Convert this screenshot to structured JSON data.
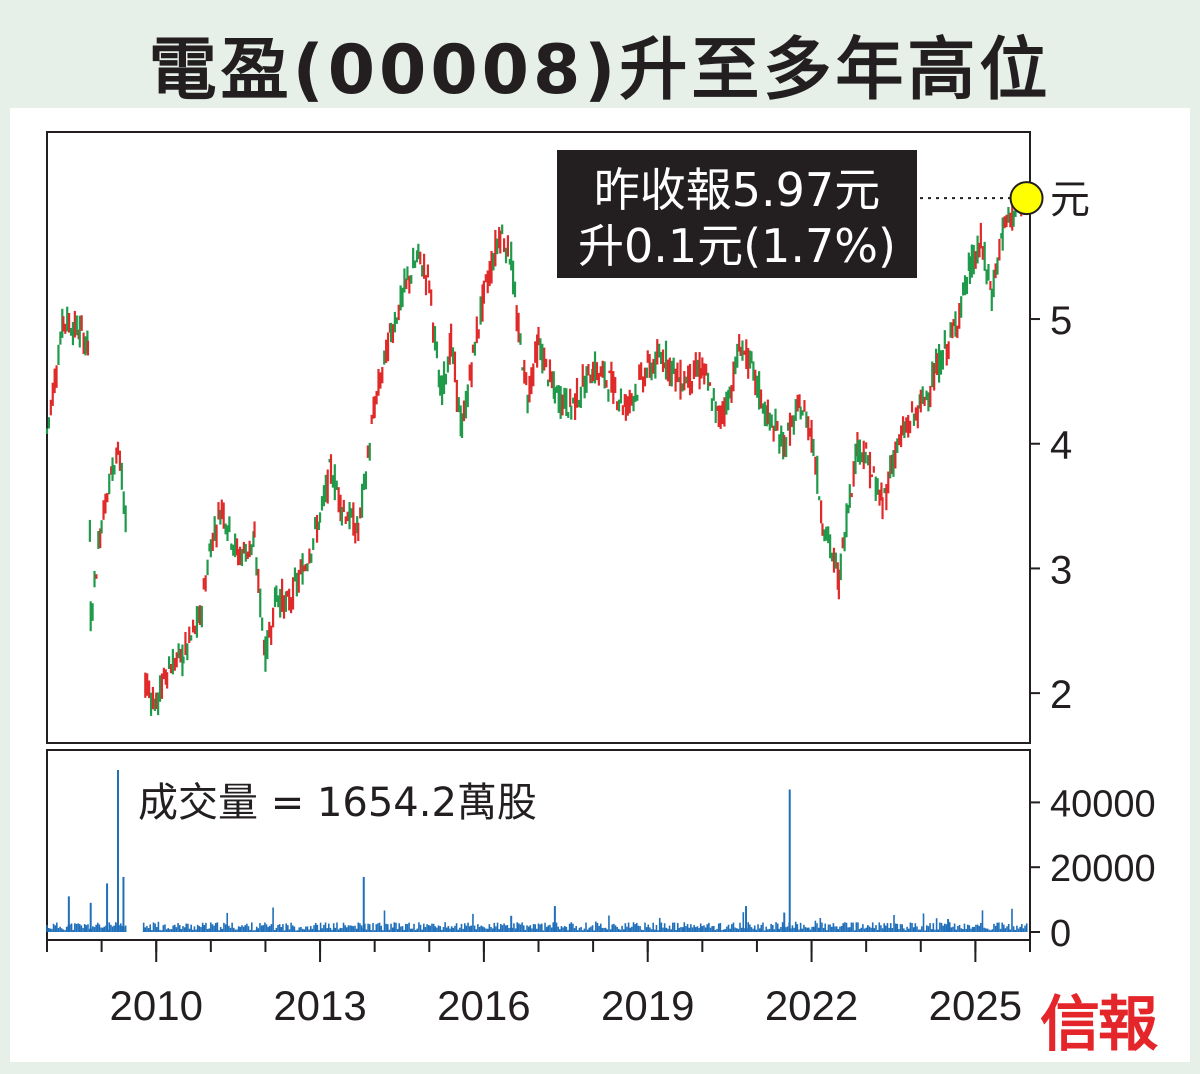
{
  "title": "電盈(00008)升至多年高位",
  "annotation": {
    "line1": "昨收報5.97元",
    "line2": "升0.1元(1.7%)"
  },
  "volume_label": "成交量 = 1654.2萬股",
  "brand": "信報",
  "colors": {
    "background": "#e6efe8",
    "up": "#1f9a4a",
    "down": "#e02a2a",
    "volume": "#1f6fba",
    "marker": "#ffff00",
    "brand": "#e4262b"
  },
  "chart_data": [
    {
      "type": "candlestick",
      "unit_label": "元",
      "ylim": [
        1.6,
        6.5
      ],
      "y_ticks": [
        "2",
        "3",
        "4",
        "5"
      ],
      "x_ticks": [
        "2010",
        "2013",
        "2016",
        "2019",
        "2022",
        "2025"
      ],
      "last_close": 5.97,
      "series": [
        {
          "x": [
            2008.0,
            2008.3,
            2008.6,
            2008.75,
            2008.8,
            2009.0,
            2009.2,
            2009.3,
            2009.45,
            2009.6,
            2009.8,
            2010.0,
            2010.2,
            2010.5,
            2010.8,
            2011.0,
            2011.2,
            2011.5,
            2011.8,
            2012.0,
            2012.2,
            2012.4,
            2012.7,
            2013.0,
            2013.2,
            2013.4,
            2013.7,
            2014.0,
            2014.3,
            2014.6,
            2014.8,
            2015.0,
            2015.2,
            2015.4,
            2015.6,
            2015.8,
            2016.0,
            2016.3,
            2016.5,
            2016.6,
            2016.8,
            2017.0,
            2017.3,
            2017.6,
            2018.0,
            2018.3,
            2018.6,
            2019.0,
            2019.3,
            2019.6,
            2020.0,
            2020.3,
            2020.5,
            2020.7,
            2020.9,
            2021.2,
            2021.5,
            2021.8,
            2022.0,
            2022.2,
            2022.5,
            2022.7,
            2022.85,
            2023.0,
            2023.3,
            2023.5,
            2023.7,
            2024.0,
            2024.3,
            2024.6,
            2024.9,
            2025.1,
            2025.3,
            2025.5,
            2025.7,
            2025.9
          ],
          "close": [
            4.1,
            5.0,
            4.9,
            4.8,
            2.6,
            3.4,
            3.8,
            4.0,
            3.3,
            null,
            2.1,
            1.9,
            2.2,
            2.3,
            2.6,
            3.2,
            3.5,
            3.1,
            3.2,
            2.3,
            2.8,
            2.7,
            3.0,
            3.4,
            3.8,
            3.5,
            3.3,
            4.3,
            4.9,
            5.3,
            5.5,
            5.3,
            4.4,
            4.8,
            4.1,
            4.7,
            5.2,
            5.7,
            5.5,
            5.0,
            4.4,
            4.8,
            4.4,
            4.3,
            4.6,
            4.5,
            4.3,
            4.6,
            4.7,
            4.5,
            4.6,
            4.2,
            4.4,
            4.8,
            4.6,
            4.2,
            4.0,
            4.3,
            4.1,
            3.4,
            2.9,
            3.6,
            4.0,
            3.9,
            3.5,
            3.9,
            4.1,
            4.3,
            4.6,
            4.9,
            5.4,
            5.6,
            5.2,
            5.7,
            5.87,
            5.97
          ]
        }
      ]
    },
    {
      "type": "bar",
      "ylim": [
        0,
        50000
      ],
      "y_ticks": [
        "0",
        "20000",
        "40000"
      ],
      "last_volume": 1654.2,
      "spikes": [
        {
          "x": 2009.3,
          "value": 50000
        },
        {
          "x": 2009.4,
          "value": 17000
        },
        {
          "x": 2009.1,
          "value": 15000
        },
        {
          "x": 2008.4,
          "value": 11000
        },
        {
          "x": 2008.8,
          "value": 9000
        },
        {
          "x": 2013.8,
          "value": 17000
        },
        {
          "x": 2021.6,
          "value": 44000
        },
        {
          "x": 2021.5,
          "value": 6000
        },
        {
          "x": 2016.5,
          "value": 5000
        },
        {
          "x": 2017.3,
          "value": 8000
        },
        {
          "x": 2020.8,
          "value": 8000
        },
        {
          "x": 2024.5,
          "value": 4000
        }
      ],
      "baseline_volume": 1600
    }
  ]
}
